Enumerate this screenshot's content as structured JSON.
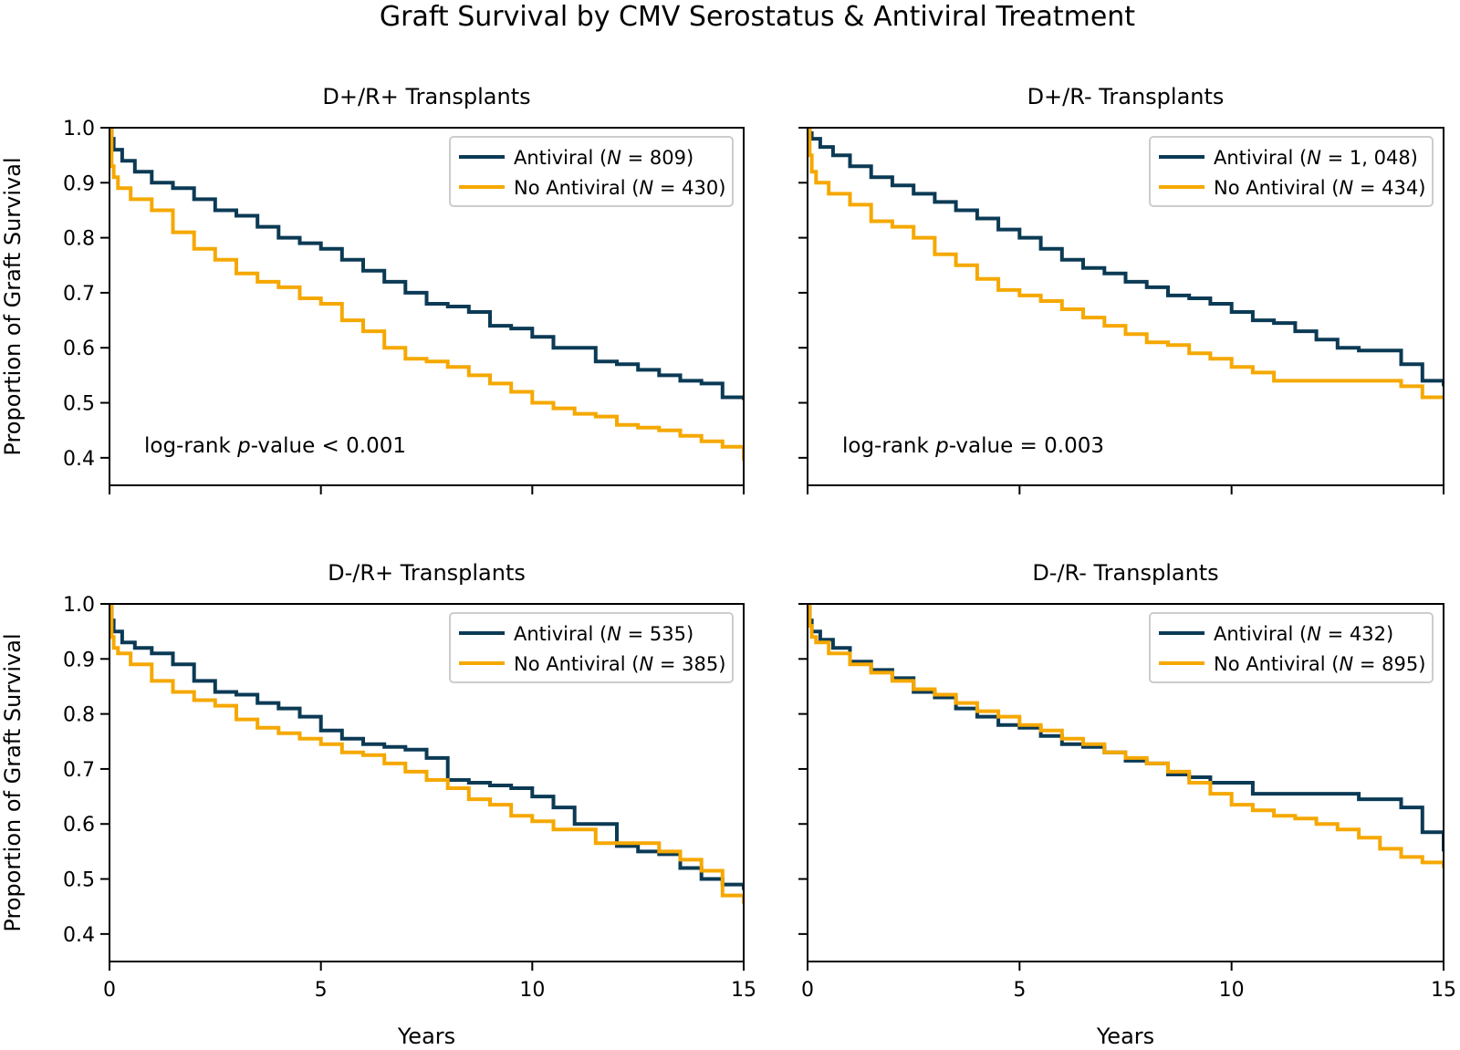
{
  "figure": {
    "title": "Graft Survival by CMV Serostatus & Antiviral Treatment"
  },
  "colors": {
    "antiviral": "#0b3a55",
    "no_antiviral": "#f5a800",
    "axis": "#000000",
    "legend_border": "#cccccc"
  },
  "chart_data": [
    {
      "type": "line",
      "title": "D+/R+ Transplants",
      "xlabel": "",
      "ylabel": "Proportion of Graft Survival",
      "xlim": [
        0,
        15
      ],
      "ylim": [
        0.35,
        1.0
      ],
      "xticks": [
        "0",
        "5",
        "10",
        "15"
      ],
      "show_xticklabels": false,
      "yticks": [
        "0.4",
        "0.5",
        "0.6",
        "0.7",
        "0.8",
        "0.9",
        "1.0"
      ],
      "grid": false,
      "legend_placement": "top-right",
      "annotation": {
        "prefix": "log-rank ",
        "italic": "p",
        "suffix": "-value < 0.001"
      },
      "series": [
        {
          "name": "Antiviral",
          "n": "809",
          "color": "#0b3a55",
          "x": [
            0,
            0.05,
            0.1,
            0.3,
            0.6,
            1.0,
            1.5,
            2.0,
            2.5,
            3.0,
            3.5,
            4.0,
            4.5,
            5.0,
            5.5,
            6.0,
            6.5,
            7.0,
            7.5,
            8.0,
            8.5,
            9.0,
            9.5,
            10.0,
            10.5,
            11.0,
            11.5,
            12.0,
            12.5,
            13.0,
            13.5,
            14.0,
            14.5,
            15.0
          ],
          "y": [
            1.0,
            0.98,
            0.96,
            0.94,
            0.92,
            0.9,
            0.89,
            0.87,
            0.85,
            0.84,
            0.82,
            0.8,
            0.79,
            0.78,
            0.76,
            0.74,
            0.72,
            0.7,
            0.68,
            0.675,
            0.665,
            0.64,
            0.635,
            0.62,
            0.6,
            0.6,
            0.575,
            0.57,
            0.56,
            0.55,
            0.54,
            0.535,
            0.51,
            0.505
          ]
        },
        {
          "name": "No Antiviral",
          "n": "430",
          "color": "#f5a800",
          "x": [
            0,
            0.05,
            0.1,
            0.2,
            0.5,
            1.0,
            1.5,
            2.0,
            2.5,
            3.0,
            3.5,
            4.0,
            4.5,
            5.0,
            5.5,
            6.0,
            6.5,
            7.0,
            7.5,
            8.0,
            8.5,
            9.0,
            9.5,
            10.0,
            10.5,
            11.0,
            11.5,
            12.0,
            12.5,
            13.0,
            13.5,
            14.0,
            14.5,
            15.0
          ],
          "y": [
            1.0,
            0.93,
            0.91,
            0.89,
            0.87,
            0.85,
            0.81,
            0.78,
            0.76,
            0.735,
            0.72,
            0.71,
            0.69,
            0.68,
            0.65,
            0.63,
            0.6,
            0.58,
            0.575,
            0.565,
            0.55,
            0.535,
            0.52,
            0.5,
            0.49,
            0.48,
            0.475,
            0.46,
            0.455,
            0.45,
            0.44,
            0.43,
            0.42,
            0.395
          ]
        }
      ]
    },
    {
      "type": "line",
      "title": "D+/R- Transplants",
      "xlabel": "",
      "ylabel": "",
      "xlim": [
        0,
        15
      ],
      "ylim": [
        0.35,
        1.0
      ],
      "xticks": [
        "0",
        "5",
        "10",
        "15"
      ],
      "show_xticklabels": false,
      "yticks": [
        "0.4",
        "0.5",
        "0.6",
        "0.7",
        "0.8",
        "0.9",
        "1.0"
      ],
      "show_yticklabels": false,
      "grid": false,
      "legend_placement": "top-right",
      "annotation": {
        "prefix": "log-rank ",
        "italic": "p",
        "suffix": "-value = 0.003"
      },
      "series": [
        {
          "name": "Antiviral",
          "n": "1, 048",
          "color": "#0b3a55",
          "x": [
            0,
            0.05,
            0.1,
            0.3,
            0.6,
            1.0,
            1.5,
            2.0,
            2.5,
            3.0,
            3.5,
            4.0,
            4.5,
            5.0,
            5.5,
            6.0,
            6.5,
            7.0,
            7.5,
            8.0,
            8.5,
            9.0,
            9.5,
            10.0,
            10.5,
            11.0,
            11.5,
            12.0,
            12.5,
            13.0,
            13.5,
            14.0,
            14.5,
            15.0
          ],
          "y": [
            1.0,
            0.99,
            0.98,
            0.965,
            0.95,
            0.93,
            0.91,
            0.895,
            0.88,
            0.865,
            0.85,
            0.835,
            0.815,
            0.8,
            0.78,
            0.76,
            0.745,
            0.735,
            0.72,
            0.71,
            0.695,
            0.69,
            0.68,
            0.665,
            0.65,
            0.645,
            0.63,
            0.615,
            0.6,
            0.595,
            0.595,
            0.57,
            0.54,
            0.53
          ]
        },
        {
          "name": "No Antiviral",
          "n": "434",
          "color": "#f5a800",
          "x": [
            0,
            0.05,
            0.1,
            0.2,
            0.5,
            1.0,
            1.5,
            2.0,
            2.5,
            3.0,
            3.5,
            4.0,
            4.5,
            5.0,
            5.5,
            6.0,
            6.5,
            7.0,
            7.5,
            8.0,
            8.5,
            9.0,
            9.5,
            10.0,
            10.5,
            11.0,
            11.5,
            12.0,
            12.5,
            13.0,
            13.5,
            14.0,
            14.5,
            15.0
          ],
          "y": [
            1.0,
            0.95,
            0.92,
            0.9,
            0.88,
            0.86,
            0.83,
            0.82,
            0.8,
            0.77,
            0.75,
            0.725,
            0.705,
            0.695,
            0.685,
            0.67,
            0.655,
            0.64,
            0.625,
            0.61,
            0.605,
            0.59,
            0.58,
            0.565,
            0.555,
            0.54,
            0.54,
            0.54,
            0.54,
            0.54,
            0.54,
            0.53,
            0.51,
            0.51
          ]
        }
      ]
    },
    {
      "type": "line",
      "title": "D-/R+ Transplants",
      "xlabel": "Years",
      "ylabel": "Proportion of Graft Survival",
      "xlim": [
        0,
        15
      ],
      "ylim": [
        0.35,
        1.0
      ],
      "xticks": [
        "0",
        "5",
        "10",
        "15"
      ],
      "yticks": [
        "0.4",
        "0.5",
        "0.6",
        "0.7",
        "0.8",
        "0.9",
        "1.0"
      ],
      "grid": false,
      "legend_placement": "top-right",
      "series": [
        {
          "name": "Antiviral",
          "n": "535",
          "color": "#0b3a55",
          "x": [
            0,
            0.05,
            0.1,
            0.3,
            0.6,
            1.0,
            1.5,
            2.0,
            2.5,
            3.0,
            3.5,
            4.0,
            4.5,
            5.0,
            5.5,
            6.0,
            6.5,
            7.0,
            7.5,
            8.0,
            8.5,
            9.0,
            9.5,
            10.0,
            10.5,
            11.0,
            11.5,
            12.0,
            12.5,
            13.0,
            13.5,
            14.0,
            14.5,
            15.0
          ],
          "y": [
            1.0,
            0.97,
            0.95,
            0.93,
            0.92,
            0.91,
            0.89,
            0.86,
            0.84,
            0.835,
            0.82,
            0.81,
            0.795,
            0.77,
            0.755,
            0.745,
            0.74,
            0.735,
            0.72,
            0.68,
            0.675,
            0.67,
            0.665,
            0.65,
            0.63,
            0.6,
            0.6,
            0.56,
            0.55,
            0.545,
            0.52,
            0.5,
            0.49,
            0.48
          ]
        },
        {
          "name": "No Antiviral",
          "n": "385",
          "color": "#f5a800",
          "x": [
            0,
            0.05,
            0.1,
            0.2,
            0.5,
            1.0,
            1.5,
            2.0,
            2.5,
            3.0,
            3.5,
            4.0,
            4.5,
            5.0,
            5.5,
            6.0,
            6.5,
            7.0,
            7.5,
            8.0,
            8.5,
            9.0,
            9.5,
            10.0,
            10.5,
            11.0,
            11.5,
            12.0,
            12.5,
            13.0,
            13.5,
            14.0,
            14.5,
            15.0
          ],
          "y": [
            1.0,
            0.94,
            0.92,
            0.91,
            0.89,
            0.86,
            0.84,
            0.825,
            0.815,
            0.79,
            0.775,
            0.765,
            0.755,
            0.745,
            0.73,
            0.725,
            0.71,
            0.695,
            0.68,
            0.665,
            0.645,
            0.635,
            0.615,
            0.605,
            0.59,
            0.59,
            0.565,
            0.565,
            0.565,
            0.55,
            0.535,
            0.515,
            0.47,
            0.455
          ]
        }
      ]
    },
    {
      "type": "line",
      "title": "D-/R- Transplants",
      "xlabel": "Years",
      "ylabel": "",
      "xlim": [
        0,
        15
      ],
      "ylim": [
        0.35,
        1.0
      ],
      "xticks": [
        "0",
        "5",
        "10",
        "15"
      ],
      "yticks": [
        "0.4",
        "0.5",
        "0.6",
        "0.7",
        "0.8",
        "0.9",
        "1.0"
      ],
      "show_yticklabels": false,
      "grid": false,
      "legend_placement": "top-right",
      "series": [
        {
          "name": "Antiviral",
          "n": "432",
          "color": "#0b3a55",
          "x": [
            0,
            0.05,
            0.1,
            0.3,
            0.6,
            1.0,
            1.5,
            2.0,
            2.5,
            3.0,
            3.5,
            4.0,
            4.5,
            5.0,
            5.5,
            6.0,
            6.5,
            7.0,
            7.5,
            8.0,
            8.5,
            9.0,
            9.5,
            10.0,
            10.5,
            11.0,
            11.5,
            12.0,
            12.5,
            13.0,
            13.5,
            14.0,
            14.5,
            15.0
          ],
          "y": [
            1.0,
            0.97,
            0.95,
            0.935,
            0.92,
            0.895,
            0.88,
            0.865,
            0.84,
            0.83,
            0.81,
            0.795,
            0.78,
            0.775,
            0.76,
            0.745,
            0.74,
            0.73,
            0.715,
            0.71,
            0.69,
            0.685,
            0.675,
            0.675,
            0.655,
            0.655,
            0.655,
            0.655,
            0.655,
            0.645,
            0.645,
            0.63,
            0.585,
            0.55
          ]
        },
        {
          "name": "No Antiviral",
          "n": "895",
          "color": "#f5a800",
          "x": [
            0,
            0.05,
            0.1,
            0.2,
            0.5,
            1.0,
            1.5,
            2.0,
            2.5,
            3.0,
            3.5,
            4.0,
            4.5,
            5.0,
            5.5,
            6.0,
            6.5,
            7.0,
            7.5,
            8.0,
            8.5,
            9.0,
            9.5,
            10.0,
            10.5,
            11.0,
            11.5,
            12.0,
            12.5,
            13.0,
            13.5,
            14.0,
            14.5,
            15.0
          ],
          "y": [
            1.0,
            0.96,
            0.94,
            0.93,
            0.91,
            0.89,
            0.875,
            0.86,
            0.845,
            0.835,
            0.82,
            0.805,
            0.795,
            0.78,
            0.77,
            0.755,
            0.745,
            0.73,
            0.72,
            0.71,
            0.695,
            0.675,
            0.655,
            0.635,
            0.625,
            0.615,
            0.61,
            0.6,
            0.59,
            0.575,
            0.555,
            0.54,
            0.53,
            0.52
          ]
        }
      ]
    }
  ]
}
